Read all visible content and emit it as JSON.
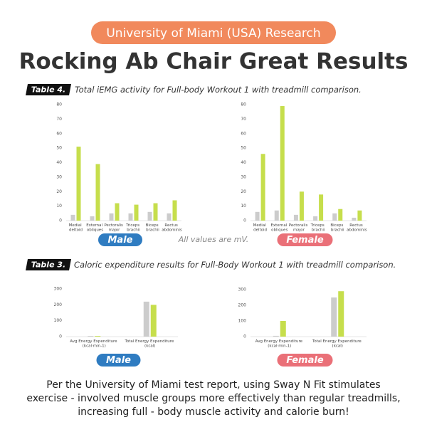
{
  "banner": "University of Miami (USA) Research",
  "title": "Rocking Ab Chair Great Results",
  "sections": [
    {
      "tag": "Table 4.",
      "caption": "Total iEMG activity for Full-body Workout 1 with treadmill comparison.",
      "note": "All values are mV."
    },
    {
      "tag": "Table 3.",
      "caption": "Caloric expenditure results for Full-Body Workout 1 with treadmill comparison."
    }
  ],
  "footer": [
    "Per the University of Miami test report, using Sway N Fit stimulates",
    "exercise - involved muscle groups more effectively than regular treadmills,",
    "increasing full - body muscle activity and calorie burn!"
  ],
  "chart_data": [
    {
      "type": "bar",
      "title": "Male",
      "title_color": "#2f7cc1",
      "categories": [
        "Medial deltoid",
        "External obliques",
        "Pectoralis major",
        "Triceps brachii",
        "Biceps brachii",
        "Rectus abdominis"
      ],
      "series": [
        {
          "color": "#cccccc",
          "values": [
            4,
            3,
            5,
            5,
            6,
            5
          ]
        },
        {
          "color": "#c6de4c",
          "values": [
            51,
            39,
            12,
            11,
            12,
            14
          ]
        }
      ],
      "ylim": [
        0,
        80
      ],
      "yticks": [
        0,
        10,
        20,
        30,
        40,
        50,
        60,
        70,
        80
      ]
    },
    {
      "type": "bar",
      "title": "Female",
      "title_color": "#ea7078",
      "categories": [
        "Medial deltoid",
        "External obliques",
        "Pectoralis major",
        "Triceps brachii",
        "Biceps brachii",
        "Rectus abdominis"
      ],
      "series": [
        {
          "color": "#cccccc",
          "values": [
            6,
            7,
            4,
            3,
            5,
            2
          ]
        },
        {
          "color": "#c6de4c",
          "values": [
            46,
            79,
            20,
            18,
            8,
            7
          ]
        }
      ],
      "ylim": [
        0,
        80
      ],
      "yticks": [
        0,
        10,
        20,
        30,
        40,
        50,
        60,
        70,
        80
      ]
    },
    {
      "type": "bar",
      "title": "Male",
      "title_color": "#2f7cc1",
      "categories": [
        "Avg Energy Expenditure (kcal·min-1)",
        "Total Energy Expenditure (kcal)"
      ],
      "series": [
        {
          "color": "#cccccc",
          "values": [
            4,
            220
          ]
        },
        {
          "color": "#c6de4c",
          "values": [
            4,
            200
          ]
        }
      ],
      "ylim": [
        0,
        300
      ],
      "yticks": [
        0,
        100,
        200,
        300
      ]
    },
    {
      "type": "bar",
      "title": "Female",
      "title_color": "#ea7078",
      "categories": [
        "Avg Energy Expenditure (kcal·min-1)",
        "Total Energy Expenditure (kcal)"
      ],
      "series": [
        {
          "color": "#cccccc",
          "values": [
            5,
            250
          ]
        },
        {
          "color": "#c6de4c",
          "values": [
            100,
            290
          ]
        }
      ],
      "ylim": [
        0,
        300
      ],
      "yticks": [
        0,
        100,
        200,
        300
      ]
    }
  ]
}
